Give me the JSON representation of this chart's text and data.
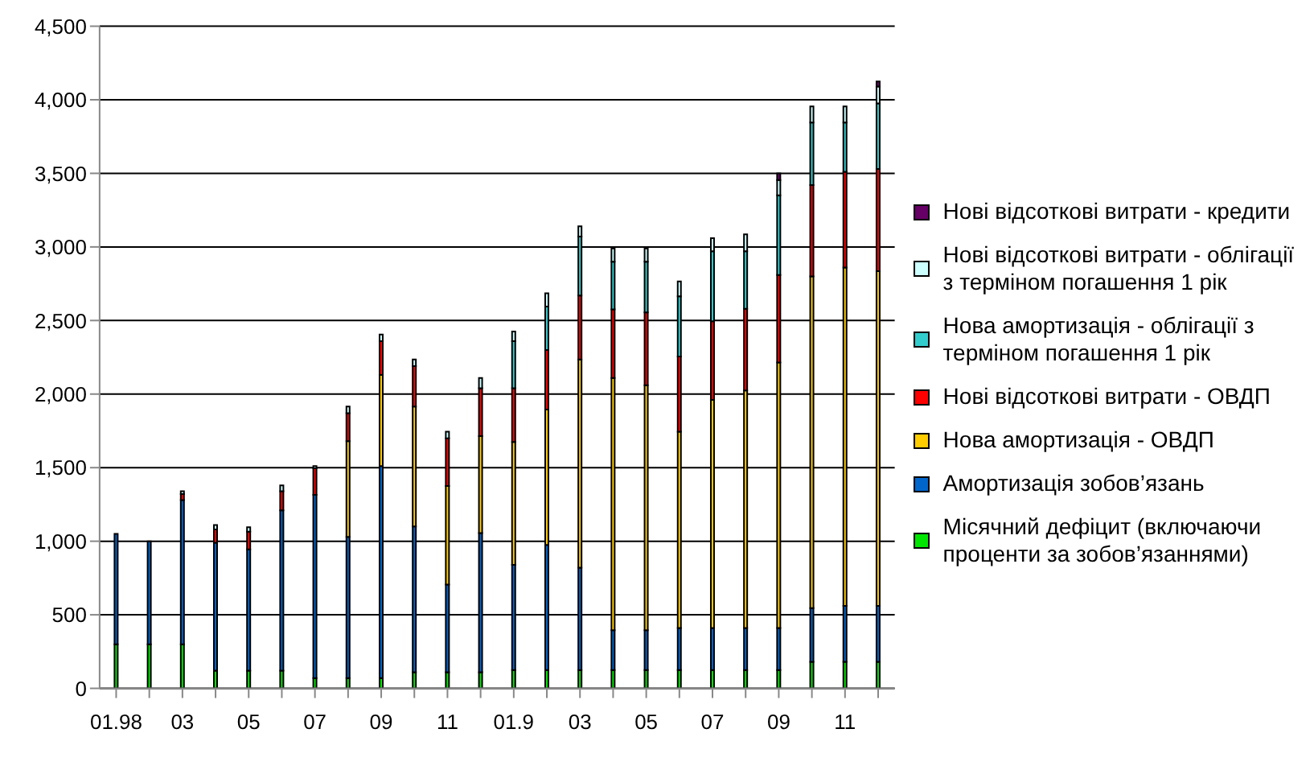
{
  "chart_data": {
    "type": "bar",
    "stacked": true,
    "categories": [
      "01.98",
      null,
      "03",
      null,
      "05",
      null,
      "07",
      null,
      "09",
      null,
      "11",
      null,
      "01.9",
      null,
      "03",
      null,
      "05",
      null,
      "07",
      null,
      "09",
      null,
      "11",
      null
    ],
    "series": [
      {
        "name": "Місячний дефіцит (включаючи проценти за зобов’язаннями)",
        "color": "#00e600",
        "values": [
          300,
          300,
          300,
          120,
          120,
          120,
          70,
          70,
          70,
          110,
          110,
          110,
          125,
          125,
          125,
          125,
          125,
          125,
          125,
          125,
          125,
          180,
          180,
          180
        ]
      },
      {
        "name": "Амортизація зобов’язань",
        "color": "#0066cc",
        "values": [
          750,
          700,
          980,
          870,
          825,
          1090,
          1245,
          960,
          1440,
          990,
          595,
          945,
          715,
          850,
          695,
          270,
          270,
          285,
          285,
          285,
          285,
          365,
          380,
          380
        ]
      },
      {
        "name": "Нова амортизація - ОВДП",
        "color": "#ffcc00",
        "values": [
          null,
          null,
          null,
          null,
          null,
          null,
          null,
          650,
          620,
          815,
          670,
          660,
          835,
          920,
          1415,
          1715,
          1665,
          1335,
          1550,
          1615,
          1805,
          2255,
          2300,
          2275
        ]
      },
      {
        "name": "Нові відсоткові витрати - ОВДП",
        "color": "#ff0000",
        "values": [
          null,
          null,
          40,
          90,
          120,
          130,
          180,
          190,
          230,
          275,
          325,
          325,
          365,
          405,
          435,
          465,
          495,
          510,
          535,
          555,
          595,
          620,
          650,
          695
        ]
      },
      {
        "name": "Нова амортизація - облігації з терміном погашення 1 рік",
        "color": "#33cccc",
        "values": [
          null,
          null,
          null,
          null,
          null,
          null,
          null,
          null,
          null,
          null,
          null,
          null,
          320,
          295,
          400,
          325,
          345,
          410,
          475,
          390,
          540,
          425,
          335,
          445
        ]
      },
      {
        "name": "Нові відсоткові витрати - облігації з терміном погашення 1 рік",
        "color": "#ccffff",
        "values": [
          null,
          null,
          20,
          30,
          30,
          40,
          15,
          45,
          45,
          45,
          45,
          70,
          65,
          90,
          70,
          90,
          90,
          100,
          90,
          115,
          105,
          110,
          110,
          115
        ]
      },
      {
        "name": "Нові відсоткові витрати - кредити",
        "color": "#660066",
        "values": [
          null,
          null,
          null,
          null,
          null,
          null,
          null,
          null,
          null,
          null,
          null,
          null,
          null,
          null,
          null,
          null,
          null,
          null,
          null,
          null,
          45,
          null,
          null,
          35
        ]
      }
    ],
    "ylim": [
      0,
      4500
    ],
    "yticks": [
      0,
      {
        "value": 500,
        "label": "500"
      },
      {
        "value": 1000,
        "label": "1,000"
      },
      {
        "value": 1500,
        "label": "1,500"
      },
      {
        "value": 2000,
        "label": "2,000"
      },
      {
        "value": 2500,
        "label": "2,500"
      },
      {
        "value": 3000,
        "label": "3,000"
      },
      {
        "value": 3500,
        "label": "3,500"
      },
      {
        "value": 4000,
        "label": "4,000"
      },
      {
        "value": 4500,
        "label": "4,500"
      }
    ],
    "grid": "y",
    "legend": "right"
  }
}
